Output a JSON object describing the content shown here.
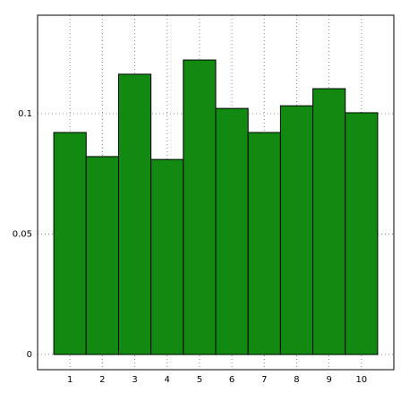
{
  "chart_data": {
    "type": "bar",
    "categories": [
      "1",
      "2",
      "3",
      "4",
      "5",
      "6",
      "7",
      "8",
      "9",
      "10"
    ],
    "values": [
      0.0922,
      0.0822,
      0.1164,
      0.081,
      0.1223,
      0.1022,
      0.0922,
      0.1033,
      0.1104,
      0.1004
    ],
    "color": "#128a12",
    "ylim": [
      -0.0063,
      0.1409
    ],
    "yticks": [
      0,
      0.05,
      0.1
    ],
    "grid": true
  }
}
